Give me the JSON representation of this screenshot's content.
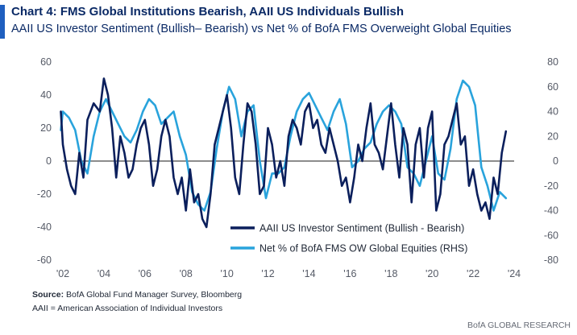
{
  "header": {
    "title": "Chart 4: FMS Global Institutions Bearish, AAII US Individuals Bullish",
    "subtitle": "AAII US Investor Sentiment (Bullish– Bearish) vs Net % of BofA FMS Overweight Global Equities"
  },
  "footer": {
    "source_label": "Source:",
    "source_text": "BofA Global Fund Manager Survey, Bloomberg",
    "note": "AAII = American Association of Individual Investors",
    "brand": "BofA GLOBAL RESEARCH"
  },
  "colors": {
    "aaii": "#0b1f5c",
    "fms": "#29a3dc",
    "zero_line": "#1a1a1a",
    "accent": "#1f5fbf"
  },
  "chart_data": {
    "type": "line",
    "title": "Chart 4: FMS Global Institutions Bearish, AAII US Individuals Bullish",
    "subtitle": "AAII US Investor Sentiment (Bullish– Bearish) vs Net % of BofA FMS Overweight Global Equities",
    "x_ticks": [
      "'02",
      "'04",
      "'06",
      "'08",
      "'10",
      "'12",
      "'14",
      "'16",
      "'18",
      "'20",
      "'22",
      "'24"
    ],
    "xlim": [
      2002,
      2024
    ],
    "y_left": {
      "ticks": [
        60,
        40,
        20,
        0,
        -20,
        -40,
        -60
      ],
      "ylim": [
        -60,
        60
      ]
    },
    "y_right": {
      "ticks": [
        80,
        60,
        40,
        20,
        0,
        -20,
        -40,
        -60,
        -80
      ],
      "ylim": [
        -80,
        80
      ]
    },
    "grid": false,
    "legend_position": "bottom-right",
    "series": [
      {
        "name": "AAII US Investor Sentiment (Bullish - Bearish)",
        "axis": "left",
        "x": [
          2001.9,
          2002.0,
          2002.2,
          2002.4,
          2002.6,
          2002.8,
          2003.0,
          2003.2,
          2003.5,
          2003.8,
          2004.0,
          2004.2,
          2004.4,
          2004.6,
          2004.8,
          2005.0,
          2005.2,
          2005.4,
          2005.6,
          2005.8,
          2006.0,
          2006.2,
          2006.4,
          2006.6,
          2006.8,
          2007.0,
          2007.2,
          2007.4,
          2007.6,
          2007.8,
          2008.0,
          2008.2,
          2008.4,
          2008.6,
          2008.8,
          2009.0,
          2009.2,
          2009.4,
          2009.6,
          2009.8,
          2010.0,
          2010.2,
          2010.4,
          2010.6,
          2010.8,
          2011.0,
          2011.2,
          2011.4,
          2011.6,
          2011.8,
          2012.0,
          2012.2,
          2012.4,
          2012.6,
          2012.8,
          2013.0,
          2013.2,
          2013.4,
          2013.6,
          2013.8,
          2014.0,
          2014.2,
          2014.4,
          2014.6,
          2014.8,
          2015.0,
          2015.2,
          2015.4,
          2015.6,
          2015.8,
          2016.0,
          2016.2,
          2016.4,
          2016.6,
          2016.8,
          2017.0,
          2017.2,
          2017.4,
          2017.6,
          2017.8,
          2018.0,
          2018.2,
          2018.4,
          2018.6,
          2018.8,
          2019.0,
          2019.2,
          2019.4,
          2019.6,
          2019.8,
          2020.0,
          2020.2,
          2020.4,
          2020.6,
          2020.8,
          2021.0,
          2021.2,
          2021.4,
          2021.6,
          2021.8,
          2022.0,
          2022.2,
          2022.4,
          2022.6,
          2022.8,
          2023.0,
          2023.2,
          2023.4,
          2023.6
        ],
        "values": [
          30,
          10,
          -5,
          -15,
          -20,
          5,
          -10,
          25,
          35,
          30,
          50,
          40,
          20,
          -10,
          15,
          5,
          -10,
          -5,
          10,
          20,
          25,
          10,
          -15,
          -5,
          15,
          25,
          15,
          -10,
          -20,
          -10,
          -30,
          -5,
          -25,
          -20,
          -35,
          -40,
          -20,
          10,
          20,
          30,
          40,
          20,
          -10,
          -20,
          10,
          35,
          30,
          10,
          -20,
          -15,
          20,
          10,
          -10,
          0,
          -15,
          15,
          25,
          20,
          10,
          30,
          35,
          20,
          25,
          10,
          5,
          20,
          10,
          0,
          -15,
          -10,
          -25,
          -10,
          10,
          0,
          20,
          35,
          10,
          5,
          -5,
          15,
          35,
          10,
          -10,
          20,
          10,
          -25,
          10,
          20,
          -10,
          20,
          30,
          -30,
          -20,
          10,
          15,
          25,
          35,
          10,
          15,
          -15,
          -5,
          -20,
          -30,
          -25,
          -35,
          -10,
          -20,
          5,
          18
        ]
      },
      {
        "name": "Net % of BofA FMS OW Global Equities (RHS)",
        "axis": "right",
        "x": [
          2001.9,
          2002.0,
          2002.3,
          2002.6,
          2002.9,
          2003.2,
          2003.5,
          2003.8,
          2004.1,
          2004.4,
          2004.7,
          2005.0,
          2005.3,
          2005.6,
          2005.9,
          2006.2,
          2006.5,
          2006.8,
          2007.1,
          2007.4,
          2007.7,
          2008.0,
          2008.3,
          2008.6,
          2008.9,
          2009.2,
          2009.5,
          2009.8,
          2010.1,
          2010.4,
          2010.7,
          2011.0,
          2011.3,
          2011.6,
          2011.9,
          2012.2,
          2012.5,
          2012.8,
          2013.1,
          2013.4,
          2013.7,
          2014.0,
          2014.3,
          2014.6,
          2014.9,
          2015.2,
          2015.5,
          2015.8,
          2016.1,
          2016.4,
          2016.7,
          2017.0,
          2017.3,
          2017.6,
          2017.9,
          2018.2,
          2018.5,
          2018.8,
          2019.1,
          2019.4,
          2019.7,
          2020.0,
          2020.3,
          2020.6,
          2020.9,
          2021.2,
          2021.5,
          2021.8,
          2022.1,
          2022.4,
          2022.7,
          2023.0,
          2023.3,
          2023.6
        ],
        "values": [
          25,
          40,
          35,
          25,
          0,
          -10,
          20,
          40,
          50,
          40,
          30,
          20,
          15,
          25,
          40,
          50,
          45,
          30,
          35,
          40,
          20,
          5,
          -25,
          -35,
          -40,
          -25,
          10,
          40,
          60,
          50,
          20,
          40,
          45,
          0,
          -30,
          -10,
          -10,
          -5,
          20,
          40,
          50,
          55,
          45,
          35,
          25,
          40,
          50,
          30,
          -5,
          0,
          10,
          15,
          30,
          40,
          45,
          40,
          30,
          -5,
          -10,
          -20,
          0,
          20,
          -10,
          -15,
          10,
          50,
          65,
          60,
          45,
          -5,
          -20,
          -40,
          -25,
          -30
        ]
      }
    ]
  }
}
